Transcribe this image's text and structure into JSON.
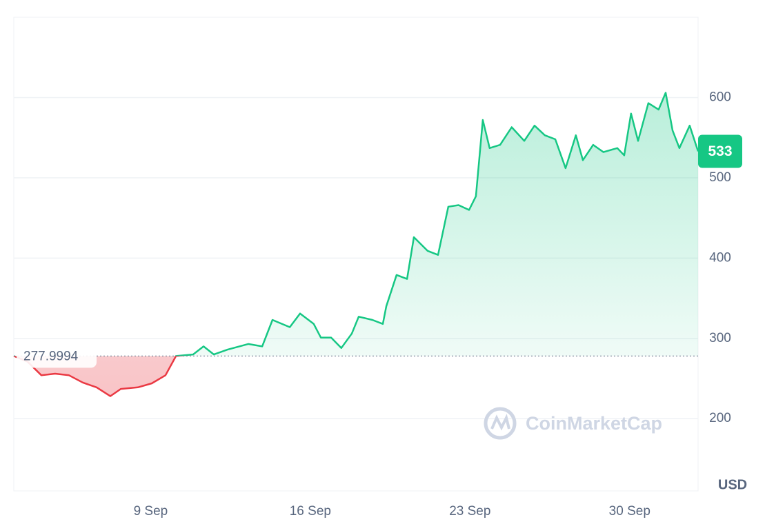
{
  "chart_data": {
    "type": "line",
    "x": [
      3.0,
      3.6,
      4.21,
      4.81,
      5.42,
      6.02,
      6.63,
      7.23,
      7.69,
      8.44,
      9.05,
      9.65,
      10.11,
      10.86,
      11.32,
      11.77,
      12.37,
      13.28,
      13.89,
      14.34,
      15.1,
      15.55,
      16.15,
      16.46,
      16.91,
      17.36,
      17.82,
      18.12,
      18.72,
      19.18,
      19.33,
      19.78,
      20.24,
      20.54,
      21.14,
      21.6,
      22.05,
      22.5,
      22.96,
      23.26,
      23.56,
      23.86,
      24.32,
      24.83,
      25.38,
      25.83,
      26.28,
      26.74,
      27.19,
      27.64,
      27.95,
      28.4,
      28.85,
      29.46,
      29.76,
      30.06,
      30.37,
      30.82,
      31.27,
      31.58,
      31.88,
      32.18,
      32.63,
      33.0
    ],
    "series": [
      {
        "color": "#16c784",
        "below_color": "#ea3943",
        "values": [
          278,
          271,
          254,
          256,
          254,
          245,
          239,
          228,
          237,
          239,
          244,
          254,
          278,
          280,
          290,
          280,
          286,
          293,
          290,
          323,
          314,
          331,
          318,
          301,
          301,
          288,
          306,
          327,
          323,
          318,
          340,
          379,
          374,
          426,
          409,
          404,
          464,
          466,
          460,
          477,
          572,
          537,
          541,
          563,
          546,
          565,
          553,
          548,
          512,
          553,
          522,
          541,
          532,
          537,
          528,
          580,
          546,
          593,
          585,
          606,
          559,
          537,
          565,
          533
        ]
      }
    ],
    "baseline": 277.9994,
    "current_price": 533,
    "currency": "USD",
    "watermark": "CoinMarketCap",
    "xlim": [
      3,
      33
    ],
    "xticks": [
      {
        "value": 9,
        "label": "9 Sep"
      },
      {
        "value": 16,
        "label": "16 Sep"
      },
      {
        "value": 23,
        "label": "23 Sep"
      },
      {
        "value": 30,
        "label": "30 Sep"
      }
    ],
    "ylim": [
      110,
      700
    ],
    "yticks": [
      200,
      300,
      400,
      500,
      600
    ],
    "grid": true
  }
}
